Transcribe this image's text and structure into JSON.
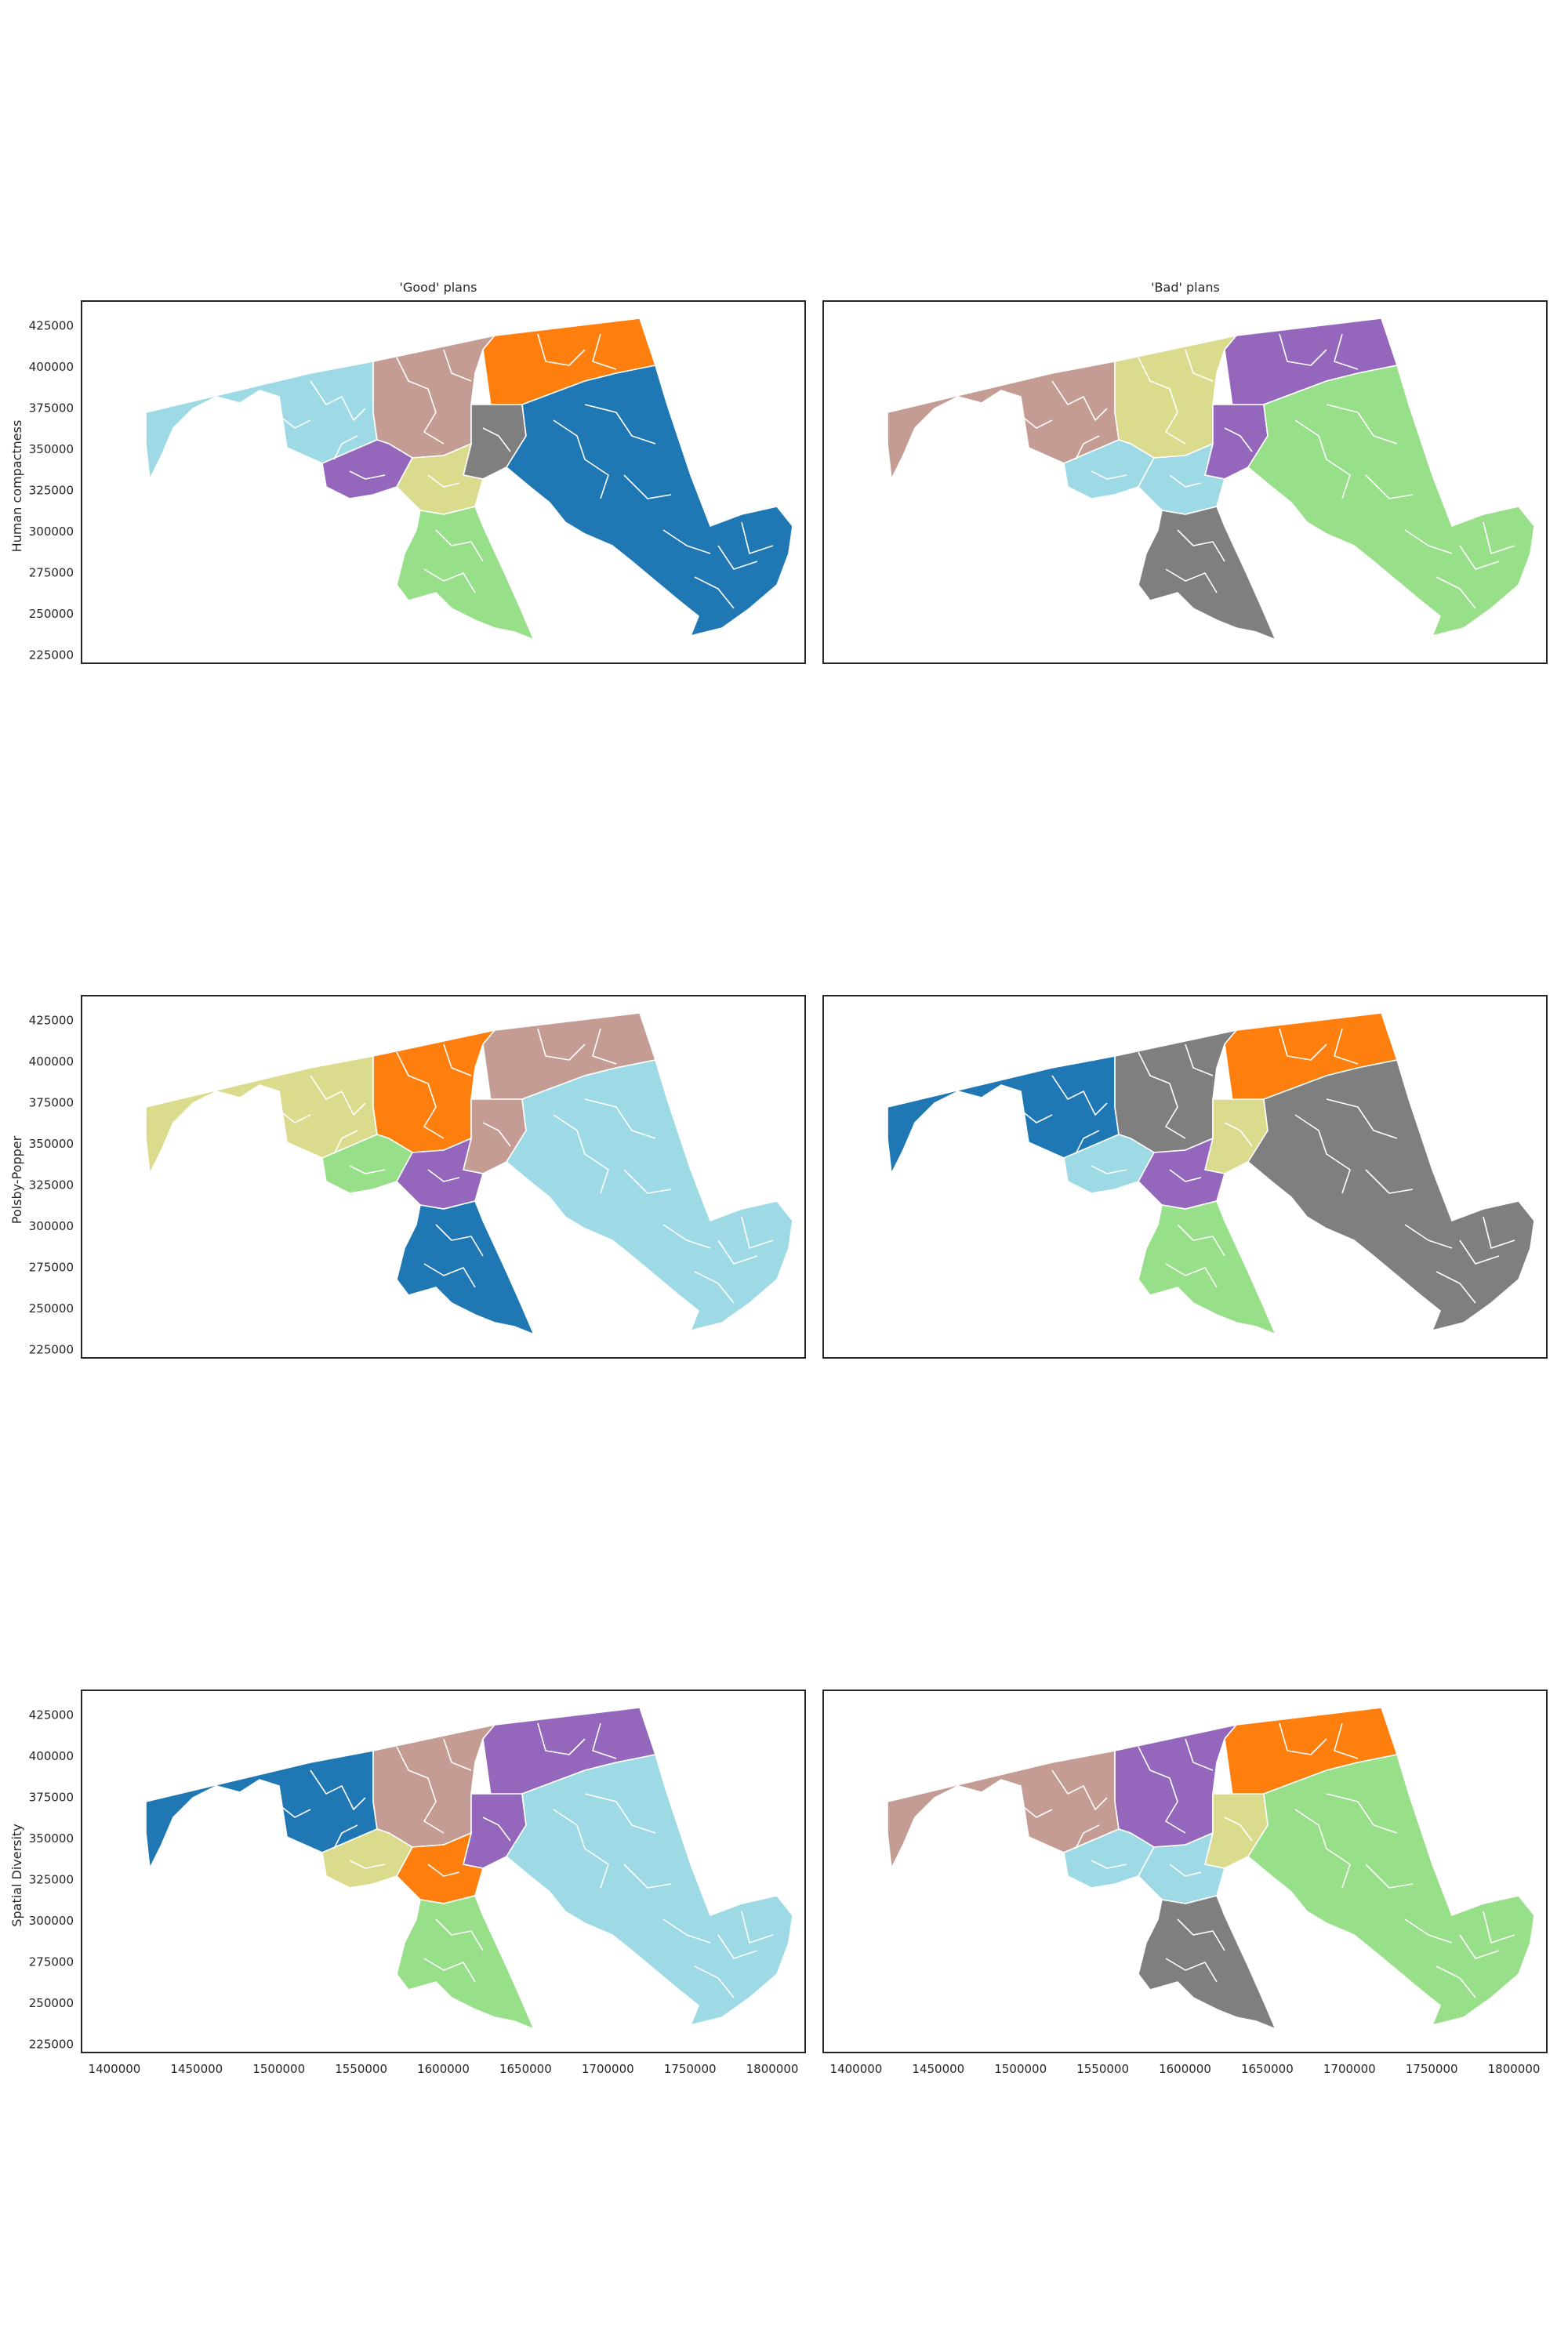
{
  "figure": {
    "column_titles": [
      "'Good' plans",
      "'Bad' plans"
    ],
    "row_labels": [
      "Human compactness",
      "Polsby-Popper",
      "Spatial Diversity"
    ],
    "y_ticks": [
      225000,
      250000,
      275000,
      300000,
      325000,
      350000,
      375000,
      400000,
      425000
    ],
    "x_ticks": [
      1400000,
      1450000,
      1500000,
      1550000,
      1600000,
      1650000,
      1700000,
      1750000,
      1800000
    ],
    "xlim": [
      1380000,
      1820000
    ],
    "ylim": [
      220000,
      440000
    ],
    "palette": {
      "blue": "#1f77b4",
      "lightblue": "#9edae5",
      "tan": "#c49c94",
      "orange": "#ff7f0e",
      "gray": "#7f7f7f",
      "purple": "#9467bd",
      "olive": "#dbdb8d",
      "green": "#98df8a"
    }
  },
  "panels": [
    {
      "row": 0,
      "col": 0,
      "districts": {
        "west": "lightblue",
        "north_central": "tan",
        "baltimore_east": "orange",
        "baltimore_city": "gray",
        "montgomery": "purple",
        "dc_pg": "olive",
        "southern": "green",
        "eastern_shore": "blue"
      }
    },
    {
      "row": 0,
      "col": 1,
      "districts": {
        "west": "tan",
        "north_central": "olive",
        "baltimore_east": "purple",
        "baltimore_city": "purple",
        "montgomery": "lightblue",
        "dc_pg": "lightblue",
        "southern": "gray",
        "eastern_shore": "green"
      }
    },
    {
      "row": 1,
      "col": 0,
      "districts": {
        "west": "olive",
        "north_central": "orange",
        "baltimore_east": "tan",
        "baltimore_city": "tan",
        "montgomery": "green",
        "dc_pg": "purple",
        "southern": "blue",
        "eastern_shore": "lightblue"
      }
    },
    {
      "row": 1,
      "col": 1,
      "districts": {
        "west": "blue",
        "north_central": "gray",
        "baltimore_east": "orange",
        "baltimore_city": "olive",
        "montgomery": "lightblue",
        "dc_pg": "purple",
        "southern": "green",
        "eastern_shore": "gray"
      }
    },
    {
      "row": 2,
      "col": 0,
      "districts": {
        "west": "blue",
        "north_central": "tan",
        "baltimore_east": "purple",
        "baltimore_city": "purple",
        "montgomery": "olive",
        "dc_pg": "orange",
        "southern": "green",
        "eastern_shore": "lightblue"
      }
    },
    {
      "row": 2,
      "col": 1,
      "districts": {
        "west": "tan",
        "north_central": "purple",
        "baltimore_east": "orange",
        "baltimore_city": "olive",
        "montgomery": "lightblue",
        "dc_pg": "lightblue",
        "southern": "gray",
        "eastern_shore": "green"
      }
    }
  ]
}
